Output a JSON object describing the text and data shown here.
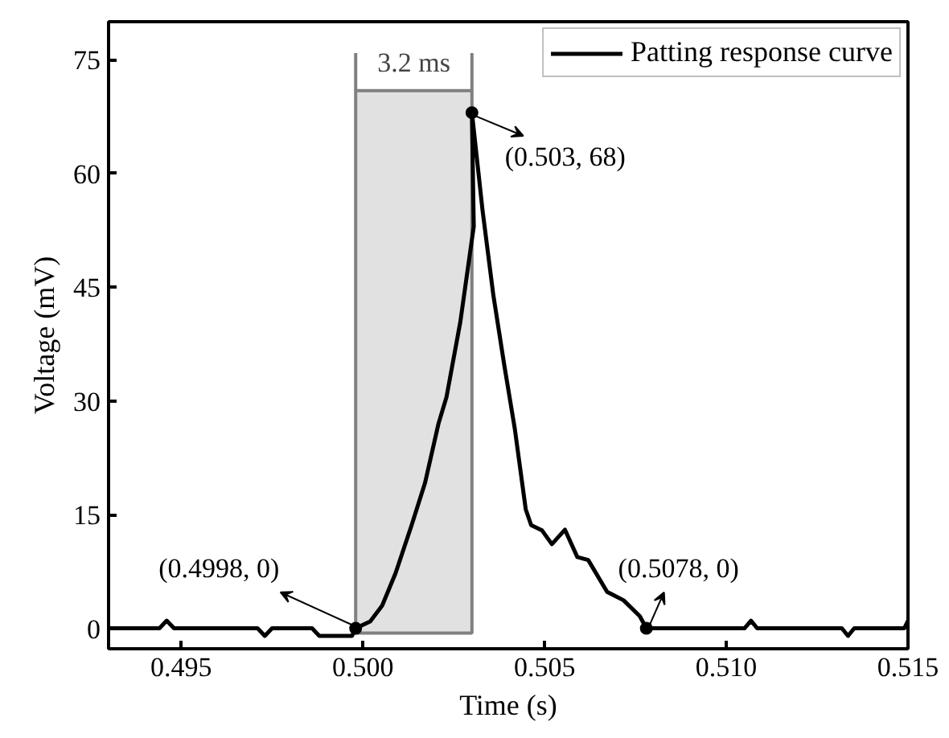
{
  "chart_data": {
    "type": "line",
    "xlabel": "Time (s)",
    "ylabel": "Voltage (mV)",
    "x": [
      0.493,
      0.4944,
      0.4946,
      0.4948,
      0.4971,
      0.4973,
      0.4975,
      0.4986,
      0.4988,
      0.4997,
      0.4998,
      0.5002,
      0.50053,
      0.5009,
      0.50134,
      0.50171,
      0.50208,
      0.5023,
      0.50268,
      0.50305,
      0.503,
      0.50329,
      0.50359,
      0.50389,
      0.50418,
      0.50448,
      0.50463,
      0.50493,
      0.5052,
      0.50556,
      0.5059,
      0.5062,
      0.50672,
      0.50717,
      0.50762,
      0.5078,
      0.5105,
      0.51068,
      0.51085,
      0.51318,
      0.51335,
      0.51352,
      0.5149,
      0.515
    ],
    "series": [
      {
        "name": "Patting response curve",
        "color": "#000000",
        "values": [
          0,
          0,
          1,
          0,
          0,
          -1,
          0,
          0,
          -1,
          -1,
          0,
          0.9,
          3,
          7.3,
          13.6,
          19.2,
          27,
          30.5,
          40.4,
          53,
          68,
          55.2,
          43.9,
          34.7,
          26.3,
          15.7,
          13.6,
          12.9,
          11.1,
          13,
          9.4,
          9,
          4.8,
          3.7,
          1.6,
          0,
          0,
          1,
          0,
          0,
          -1,
          0,
          0,
          1
        ]
      }
    ],
    "xlim": [
      0.493,
      0.515
    ],
    "ylim": [
      -2.7,
      80
    ],
    "xticks": [
      {
        "value": 0.495,
        "label": "0.495"
      },
      {
        "value": 0.5,
        "label": "0.500"
      },
      {
        "value": 0.505,
        "label": "0.505"
      },
      {
        "value": 0.51,
        "label": "0.510"
      },
      {
        "value": 0.515,
        "label": "0.515"
      }
    ],
    "yticks": [
      0,
      15,
      30,
      45,
      60,
      75
    ],
    "bands": [
      {
        "axis": "x",
        "from": 0.4998,
        "to": 0.503,
        "label": "3.2 ms",
        "color": "#d9d9d9"
      }
    ],
    "annotations": [
      {
        "text": "(0.4998, 0)",
        "x": 0.4998,
        "y": 0
      },
      {
        "text": "(0.503, 68)",
        "x": 0.503,
        "y": 68
      },
      {
        "text": "(0.5078, 0)",
        "x": 0.5078,
        "y": 0
      }
    ],
    "legend": "top right",
    "grid": false,
    "marker": "none",
    "line_style": "solid"
  }
}
